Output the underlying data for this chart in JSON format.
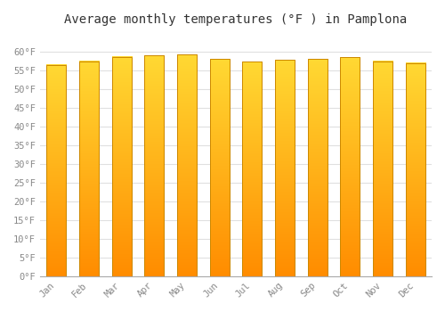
{
  "months": [
    "Jan",
    "Feb",
    "Mar",
    "Apr",
    "May",
    "Jun",
    "Jul",
    "Aug",
    "Sep",
    "Oct",
    "Nov",
    "Dec"
  ],
  "values": [
    56.5,
    57.5,
    58.7,
    59.0,
    59.2,
    58.1,
    57.4,
    57.9,
    58.1,
    58.6,
    57.5,
    57.0
  ],
  "bar_color": "#FFA500",
  "bar_top_color": "#FFD700",
  "bar_edge_color": "#CC8800",
  "title": "Average monthly temperatures (°F ) in Pamplona",
  "ylim": [
    0,
    65
  ],
  "yticks": [
    0,
    5,
    10,
    15,
    20,
    25,
    30,
    35,
    40,
    45,
    50,
    55,
    60
  ],
  "ytick_labels": [
    "0°F",
    "5°F",
    "10°F",
    "15°F",
    "20°F",
    "25°F",
    "30°F",
    "35°F",
    "40°F",
    "45°F",
    "50°F",
    "55°F",
    "60°F"
  ],
  "background_color": "#FFFFFF",
  "plot_bg_color": "#FFFFFF",
  "grid_color": "#E0E0E0",
  "title_fontsize": 10,
  "tick_fontsize": 7.5,
  "bar_width": 0.6
}
